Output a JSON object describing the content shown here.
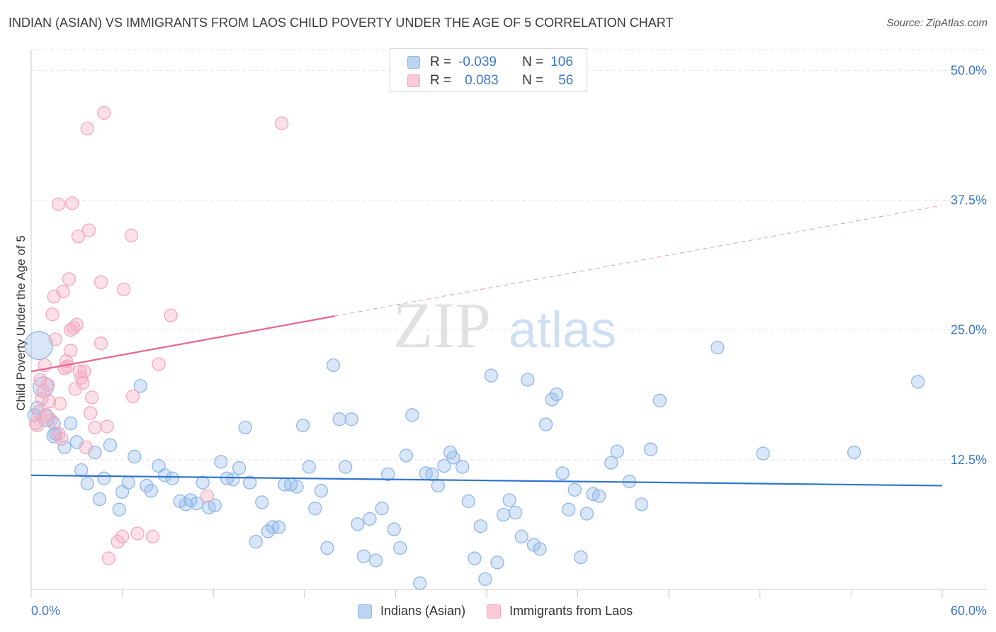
{
  "title": "INDIAN (ASIAN) VS IMMIGRANTS FROM LAOS CHILD POVERTY UNDER THE AGE OF 5 CORRELATION CHART",
  "source": "Source: ZipAtlas.com",
  "watermark": {
    "zip": "ZIP",
    "atlas": "atlas"
  },
  "legend": {
    "rows": [
      {
        "r_label": "R =",
        "r_value": "-0.039",
        "n_label": "N =",
        "n_value": "106"
      },
      {
        "r_label": "R =",
        "r_value": "0.083",
        "n_label": "N =",
        "n_value": "56"
      }
    ]
  },
  "chart_data": {
    "type": "scatter",
    "xlabel": "",
    "ylabel": "Child Poverty Under the Age of 5",
    "xlim": [
      0,
      60
    ],
    "ylim": [
      0,
      52
    ],
    "x_tick_labels": [
      "0.0%",
      "60.0%"
    ],
    "y_ticks": [
      12.5,
      25.0,
      37.5,
      50.0
    ],
    "y_tick_labels": [
      "12.5%",
      "25.0%",
      "37.5%",
      "50.0%"
    ],
    "grid": true,
    "legend_position": "top-center",
    "series": [
      {
        "name": "Indians (Asian)",
        "color": "#8fb6e8",
        "line_color": "#2f73d0",
        "trend": {
          "x": [
            0,
            60
          ],
          "y": [
            11.0,
            10.0
          ],
          "dashed_from": null
        },
        "points": [
          [
            0.5,
            23.5,
            2.2
          ],
          [
            0.8,
            19.5,
            1.6
          ],
          [
            1.0,
            16.5,
            1.3
          ],
          [
            1.5,
            16.0,
            1.0
          ],
          [
            1.5,
            14.8,
            1.1
          ],
          [
            1.6,
            15.0,
            1.0
          ],
          [
            2.2,
            13.7,
            1.0
          ],
          [
            2.6,
            16.0,
            1.0
          ],
          [
            3.0,
            14.2,
            1.0
          ],
          [
            3.3,
            11.5,
            1.0
          ],
          [
            3.7,
            10.2,
            1.0
          ],
          [
            4.2,
            13.2,
            1.0
          ],
          [
            4.5,
            8.7,
            1.0
          ],
          [
            4.8,
            10.7,
            1.0
          ],
          [
            5.2,
            13.9,
            1.0
          ],
          [
            5.8,
            7.7,
            1.0
          ],
          [
            6.0,
            9.4,
            1.0
          ],
          [
            6.4,
            10.3,
            1.0
          ],
          [
            6.8,
            12.8,
            1.0
          ],
          [
            7.2,
            19.6,
            1.0
          ],
          [
            7.6,
            10.0,
            1.0
          ],
          [
            7.9,
            9.5,
            1.0
          ],
          [
            8.4,
            11.9,
            1.0
          ],
          [
            8.8,
            11.0,
            1.0
          ],
          [
            9.3,
            10.7,
            1.0
          ],
          [
            9.8,
            8.5,
            1.0
          ],
          [
            10.2,
            8.2,
            1.0
          ],
          [
            10.5,
            8.6,
            1.0
          ],
          [
            10.9,
            8.3,
            1.0
          ],
          [
            11.3,
            10.3,
            1.0
          ],
          [
            11.7,
            7.9,
            1.0
          ],
          [
            12.1,
            8.1,
            1.0
          ],
          [
            12.5,
            12.3,
            1.0
          ],
          [
            12.9,
            10.7,
            1.0
          ],
          [
            13.3,
            10.6,
            1.0
          ],
          [
            13.7,
            11.7,
            1.0
          ],
          [
            14.1,
            15.6,
            1.0
          ],
          [
            14.4,
            10.3,
            1.0
          ],
          [
            14.8,
            4.6,
            1.0
          ],
          [
            15.2,
            8.4,
            1.0
          ],
          [
            15.6,
            5.6,
            1.0
          ],
          [
            15.9,
            6.0,
            1.0
          ],
          [
            16.3,
            6.0,
            1.0
          ],
          [
            16.7,
            10.1,
            1.0
          ],
          [
            17.1,
            10.1,
            1.0
          ],
          [
            17.5,
            9.9,
            1.0
          ],
          [
            17.9,
            15.8,
            1.0
          ],
          [
            18.3,
            11.8,
            1.0
          ],
          [
            18.7,
            7.8,
            1.0
          ],
          [
            19.1,
            9.5,
            1.0
          ],
          [
            19.5,
            4.0,
            1.0
          ],
          [
            19.9,
            21.6,
            1.0
          ],
          [
            20.3,
            16.4,
            1.0
          ],
          [
            20.7,
            11.8,
            1.0
          ],
          [
            21.1,
            16.4,
            1.0
          ],
          [
            21.5,
            6.3,
            1.0
          ],
          [
            21.9,
            3.2,
            1.0
          ],
          [
            22.3,
            6.8,
            1.0
          ],
          [
            22.7,
            2.8,
            1.0
          ],
          [
            23.1,
            7.8,
            1.0
          ],
          [
            23.5,
            11.1,
            1.0
          ],
          [
            23.9,
            5.8,
            1.0
          ],
          [
            24.3,
            4.0,
            1.0
          ],
          [
            24.7,
            12.9,
            1.0
          ],
          [
            25.1,
            16.8,
            1.0
          ],
          [
            25.6,
            0.6,
            1.0
          ],
          [
            26.0,
            11.2,
            1.0
          ],
          [
            26.4,
            11.1,
            1.0
          ],
          [
            26.8,
            10.0,
            1.0
          ],
          [
            27.2,
            11.9,
            1.0
          ],
          [
            27.6,
            13.2,
            1.0
          ],
          [
            27.8,
            12.7,
            1.0
          ],
          [
            28.4,
            11.8,
            1.0
          ],
          [
            28.8,
            8.5,
            1.0
          ],
          [
            29.2,
            3.0,
            1.0
          ],
          [
            29.6,
            6.1,
            1.0
          ],
          [
            29.9,
            1.0,
            1.0
          ],
          [
            30.3,
            20.6,
            1.0
          ],
          [
            30.7,
            2.6,
            1.0
          ],
          [
            31.1,
            7.2,
            1.0
          ],
          [
            31.5,
            8.6,
            1.0
          ],
          [
            31.9,
            7.4,
            1.0
          ],
          [
            32.3,
            5.1,
            1.0
          ],
          [
            32.7,
            20.2,
            1.0
          ],
          [
            33.1,
            4.3,
            1.0
          ],
          [
            33.5,
            3.9,
            1.0
          ],
          [
            33.9,
            15.9,
            1.0
          ],
          [
            34.3,
            18.3,
            1.0
          ],
          [
            34.6,
            18.8,
            1.0
          ],
          [
            35.0,
            11.2,
            1.0
          ],
          [
            35.4,
            7.7,
            1.0
          ],
          [
            35.8,
            9.6,
            1.0
          ],
          [
            36.2,
            3.1,
            1.0
          ],
          [
            36.6,
            7.3,
            1.0
          ],
          [
            37.0,
            9.2,
            1.0
          ],
          [
            37.4,
            9.0,
            1.0
          ],
          [
            38.2,
            12.2,
            1.0
          ],
          [
            38.6,
            13.3,
            1.0
          ],
          [
            39.4,
            10.4,
            1.0
          ],
          [
            40.2,
            8.2,
            1.0
          ],
          [
            40.8,
            13.5,
            1.0
          ],
          [
            41.4,
            18.2,
            1.0
          ],
          [
            45.2,
            23.3,
            1.0
          ],
          [
            48.2,
            13.1,
            1.0
          ],
          [
            54.2,
            13.2,
            1.0
          ],
          [
            58.4,
            20.0,
            1.0
          ],
          [
            0.2,
            16.8,
            1.0
          ],
          [
            0.4,
            17.5,
            1.0
          ]
        ]
      },
      {
        "name": "Immigrants from Laos",
        "color": "#f4a7bd",
        "line_color": "#e8658f",
        "trend": {
          "x": [
            0,
            60
          ],
          "y": [
            21.0,
            37.0
          ],
          "dashed_from": 20.0
        },
        "points": [
          [
            0.3,
            16.0,
            1.0
          ],
          [
            0.5,
            17.1,
            1.0
          ],
          [
            0.6,
            20.2,
            1.0
          ],
          [
            0.8,
            19.1,
            1.0
          ],
          [
            1.0,
            16.8,
            1.0
          ],
          [
            1.2,
            18.1,
            1.0
          ],
          [
            1.4,
            26.5,
            1.0
          ],
          [
            1.5,
            28.2,
            1.0
          ],
          [
            1.6,
            24.1,
            1.0
          ],
          [
            1.8,
            15.0,
            1.0
          ],
          [
            1.8,
            37.1,
            1.0
          ],
          [
            2.1,
            28.7,
            1.0
          ],
          [
            2.2,
            21.3,
            1.0
          ],
          [
            2.4,
            21.5,
            1.0
          ],
          [
            2.5,
            29.9,
            1.0
          ],
          [
            2.6,
            25.0,
            1.0
          ],
          [
            2.7,
            37.2,
            1.0
          ],
          [
            2.8,
            25.2,
            1.0
          ],
          [
            2.9,
            19.3,
            1.0
          ],
          [
            3.0,
            25.5,
            1.0
          ],
          [
            3.2,
            21.0,
            1.0
          ],
          [
            3.1,
            34.0,
            1.0
          ],
          [
            3.4,
            19.9,
            1.0
          ],
          [
            3.5,
            21.0,
            1.0
          ],
          [
            3.6,
            13.7,
            1.0
          ],
          [
            3.7,
            44.4,
            1.0
          ],
          [
            3.8,
            34.6,
            1.0
          ],
          [
            3.9,
            17.0,
            1.0
          ],
          [
            4.0,
            18.5,
            1.0
          ],
          [
            4.2,
            15.6,
            1.0
          ],
          [
            4.6,
            23.7,
            1.0
          ],
          [
            4.6,
            29.6,
            1.0
          ],
          [
            4.8,
            45.9,
            1.0
          ],
          [
            5.0,
            15.7,
            1.0
          ],
          [
            5.1,
            3.0,
            1.0
          ],
          [
            5.7,
            4.6,
            1.0
          ],
          [
            6.0,
            5.1,
            1.0
          ],
          [
            6.1,
            28.9,
            1.0
          ],
          [
            6.6,
            34.1,
            1.0
          ],
          [
            6.7,
            18.6,
            1.0
          ],
          [
            7.0,
            5.4,
            1.0
          ],
          [
            8.0,
            5.1,
            1.0
          ],
          [
            8.4,
            21.7,
            1.0
          ],
          [
            9.2,
            26.4,
            1.0
          ],
          [
            11.6,
            9.0,
            1.0
          ],
          [
            16.5,
            44.9,
            1.0
          ],
          [
            0.4,
            15.8,
            1.0
          ],
          [
            0.7,
            18.4,
            1.0
          ],
          [
            1.1,
            19.7,
            1.0
          ],
          [
            1.3,
            16.3,
            1.0
          ],
          [
            1.9,
            17.9,
            1.0
          ],
          [
            2.3,
            22.0,
            1.0
          ],
          [
            2.0,
            14.5,
            1.0
          ],
          [
            2.6,
            23.0,
            1.0
          ],
          [
            3.3,
            20.4,
            1.0
          ],
          [
            0.9,
            21.6,
            1.0
          ]
        ]
      }
    ]
  },
  "bottom_legend": [
    "Indians (Asian)",
    "Immigrants from Laos"
  ]
}
